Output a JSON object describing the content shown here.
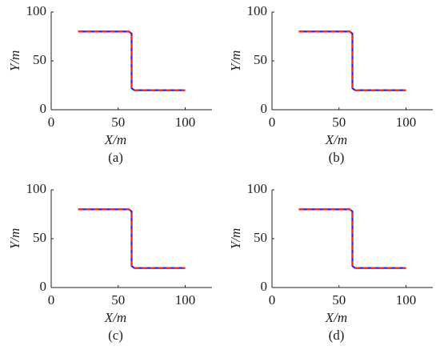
{
  "chart_data": [
    {
      "type": "line",
      "caption": "(a)",
      "xlabel": "X/m",
      "ylabel": "Y/m",
      "x": [
        20,
        58,
        60,
        60,
        62,
        100
      ],
      "series": [
        {
          "color": "#2020ff",
          "values": [
            80,
            80,
            78,
            22,
            20,
            20
          ]
        },
        {
          "color": "#ff2020",
          "values": [
            80,
            80,
            78,
            22,
            20,
            20
          ]
        }
      ],
      "xlim": [
        0,
        120
      ],
      "ylim": [
        0,
        100
      ],
      "xticks": [
        0,
        50,
        100
      ],
      "yticks": [
        0,
        50,
        100
      ]
    },
    {
      "type": "line",
      "caption": "(b)",
      "xlabel": "X/m",
      "ylabel": "Y/m",
      "x": [
        20,
        58,
        60,
        60,
        62,
        100
      ],
      "series": [
        {
          "color": "#2020ff",
          "values": [
            80,
            80,
            78,
            22,
            20,
            20
          ]
        },
        {
          "color": "#ff2020",
          "values": [
            80,
            80,
            78,
            22,
            20,
            20
          ]
        }
      ],
      "xlim": [
        0,
        120
      ],
      "ylim": [
        0,
        100
      ],
      "xticks": [
        0,
        50,
        100
      ],
      "yticks": [
        0,
        50,
        100
      ]
    },
    {
      "type": "line",
      "caption": "(c)",
      "xlabel": "X/m",
      "ylabel": "Y/m",
      "x": [
        20,
        58,
        60,
        60,
        62,
        100
      ],
      "series": [
        {
          "color": "#2020ff",
          "values": [
            80,
            80,
            78,
            22,
            20,
            20
          ]
        },
        {
          "color": "#ff2020",
          "values": [
            80,
            80,
            78,
            22,
            20,
            20
          ]
        }
      ],
      "xlim": [
        0,
        120
      ],
      "ylim": [
        0,
        100
      ],
      "xticks": [
        0,
        50,
        100
      ],
      "yticks": [
        0,
        50,
        100
      ]
    },
    {
      "type": "line",
      "caption": "(d)",
      "xlabel": "X/m",
      "ylabel": "Y/m",
      "x": [
        20,
        58,
        60,
        60,
        62,
        100
      ],
      "series": [
        {
          "color": "#2020ff",
          "values": [
            80,
            80,
            78,
            22,
            20,
            20
          ]
        },
        {
          "color": "#ff2020",
          "values": [
            80,
            80,
            78,
            22,
            20,
            20
          ]
        }
      ],
      "xlim": [
        0,
        120
      ],
      "ylim": [
        0,
        100
      ],
      "xticks": [
        0,
        50,
        100
      ],
      "yticks": [
        0,
        50,
        100
      ]
    }
  ]
}
